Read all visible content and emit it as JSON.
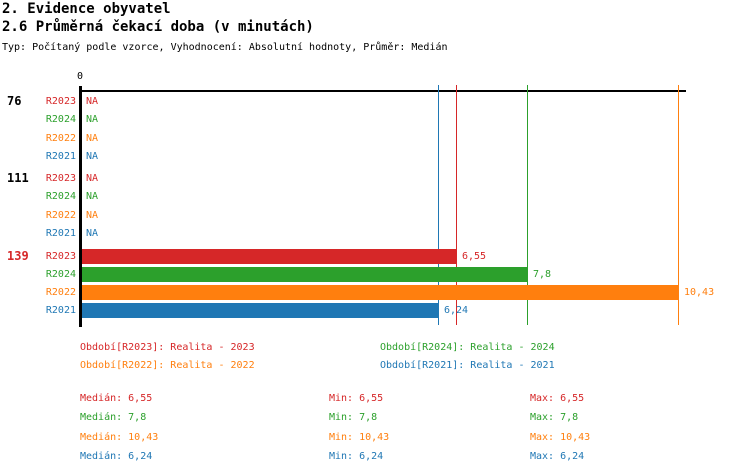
{
  "page": {
    "title_line1": "2. Evidence obyvatel",
    "title_line2": "2.6 Průměrná čekací doba (v minutách)",
    "meta_line": "Typ: Počítaný podle vzorce, Vyhodnocení: Absolutní hodnoty, Průměr: Medián"
  },
  "colors": {
    "r2023": "#d62728",
    "r2024": "#2ca02c",
    "r2022": "#ff7f0e",
    "r2021": "#1f77b4",
    "axis": "#000000",
    "text": "#000000",
    "background": "#ffffff"
  },
  "chart_data": {
    "type": "bar",
    "orientation": "horizontal",
    "title": "2. Evidence obyvatel",
    "subtitle": "2.6 Průměrná čekací doba (v minutách)",
    "note": "Typ: Počítaný podle vzorce, Vyhodnocení: Absolutní hodnoty, Průměr: Medián",
    "x_axis": {
      "origin_label": "0",
      "min": 0,
      "max": 10.6,
      "gridlines": false
    },
    "series_order": [
      "R2023",
      "R2024",
      "R2022",
      "R2021"
    ],
    "groups": [
      {
        "label": "76",
        "label_color": "#000000",
        "rows": [
          {
            "series": "R2023",
            "value": null,
            "display": "NA"
          },
          {
            "series": "R2024",
            "value": null,
            "display": "NA"
          },
          {
            "series": "R2022",
            "value": null,
            "display": "NA"
          },
          {
            "series": "R2021",
            "value": null,
            "display": "NA"
          }
        ]
      },
      {
        "label": "111",
        "label_color": "#000000",
        "rows": [
          {
            "series": "R2023",
            "value": null,
            "display": "NA"
          },
          {
            "series": "R2024",
            "value": null,
            "display": "NA"
          },
          {
            "series": "R2022",
            "value": null,
            "display": "NA"
          },
          {
            "series": "R2021",
            "value": null,
            "display": "NA"
          }
        ]
      },
      {
        "label": "139",
        "label_color": "#d62728",
        "rows": [
          {
            "series": "R2023",
            "value": 6.55,
            "display": "6,55"
          },
          {
            "series": "R2024",
            "value": 7.8,
            "display": "7,8"
          },
          {
            "series": "R2022",
            "value": 10.43,
            "display": "10,43"
          },
          {
            "series": "R2021",
            "value": 6.24,
            "display": "6,24"
          }
        ]
      }
    ]
  },
  "legend": {
    "items": [
      {
        "series": "R2023",
        "text": "Období[R2023]: Realita - 2023"
      },
      {
        "series": "R2024",
        "text": "Období[R2024]: Realita - 2024"
      },
      {
        "series": "R2022",
        "text": "Období[R2022]: Realita - 2022"
      },
      {
        "series": "R2021",
        "text": "Období[R2021]: Realita - 2021"
      }
    ]
  },
  "stats": {
    "rows": [
      {
        "series": "R2023",
        "cells": [
          "Medián: 6,55",
          "Min: 6,55",
          "Max: 6,55"
        ]
      },
      {
        "series": "R2024",
        "cells": [
          "Medián: 7,8",
          "Min: 7,8",
          "Max: 7,8"
        ]
      },
      {
        "series": "R2022",
        "cells": [
          "Medián: 10,43",
          "Min: 10,43",
          "Max: 10,43"
        ]
      },
      {
        "series": "R2021",
        "cells": [
          "Medián: 6,24",
          "Min: 6,24",
          "Max: 6,24"
        ]
      }
    ]
  }
}
